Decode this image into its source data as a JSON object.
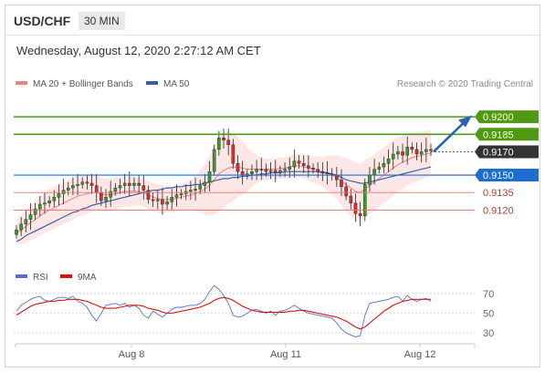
{
  "header": {
    "symbol": "USD/CHF",
    "interval": "30 MIN"
  },
  "timestamp": "Wednesday, August 12, 2020 2:27:12 AM CET",
  "colors": {
    "resistance": "#4f9a10",
    "support": "#e57373",
    "pivot": "#1e6ed2",
    "current": "#333333",
    "bollinger_fill": "#fde0e0",
    "ma20": "#f08080",
    "ma50": "#3a5ea8",
    "rsi": "#5470d0",
    "rsi_ma": "#dd1111",
    "candle_up": "#3a9a2a",
    "candle_down": "#d23030",
    "arrow": "#2a62b8"
  },
  "chart_data": [
    {
      "type": "candlestick",
      "legend": [
        {
          "name": "MA 20 + Bollinger Bands",
          "color": "#f08080"
        },
        {
          "name": "MA 50",
          "color": "#3a5ea8"
        }
      ],
      "credit": "Research © 2020 Trading Central",
      "x_ticks": [
        "Aug 8",
        "Aug 11",
        "Aug 12"
      ],
      "ylim": [
        0.9089,
        0.9222
      ],
      "levels": [
        {
          "label": "0.9200",
          "value": 0.92,
          "kind": "resistance",
          "style": "tag"
        },
        {
          "label": "0.9185",
          "value": 0.9185,
          "kind": "resistance",
          "style": "tag"
        },
        {
          "label": "0.9170",
          "value": 0.917,
          "kind": "current",
          "style": "tag"
        },
        {
          "label": "0.9150",
          "value": 0.915,
          "kind": "pivot",
          "style": "tag"
        },
        {
          "label": "0.9135",
          "value": 0.9135,
          "kind": "support",
          "style": "text"
        },
        {
          "label": "0.9120",
          "value": 0.912,
          "kind": "support",
          "style": "text"
        }
      ],
      "arrow": {
        "from": 0.917,
        "to": 0.9198
      },
      "close": [
        0.9103,
        0.9108,
        0.9112,
        0.9116,
        0.9121,
        0.9125,
        0.9126,
        0.9128,
        0.9131,
        0.9134,
        0.9137,
        0.9139,
        0.9141,
        0.9142,
        0.9144,
        0.9143,
        0.9141,
        0.9135,
        0.9128,
        0.9131,
        0.9136,
        0.9139,
        0.9141,
        0.9143,
        0.9141,
        0.9143,
        0.9141,
        0.9137,
        0.9129,
        0.9128,
        0.9129,
        0.9125,
        0.9127,
        0.9131,
        0.9133,
        0.9134,
        0.9136,
        0.9137,
        0.9138,
        0.9141,
        0.9144,
        0.9153,
        0.9172,
        0.9182,
        0.918,
        0.9176,
        0.916,
        0.9153,
        0.915,
        0.9151,
        0.9153,
        0.9155,
        0.9155,
        0.9153,
        0.9154,
        0.9152,
        0.9154,
        0.9155,
        0.9157,
        0.9162,
        0.916,
        0.9158,
        0.9156,
        0.9155,
        0.9153,
        0.9152,
        0.9151,
        0.915,
        0.9146,
        0.914,
        0.9132,
        0.9126,
        0.9117,
        0.9115,
        0.9142,
        0.915,
        0.9155,
        0.9157,
        0.916,
        0.9164,
        0.9168,
        0.917,
        0.9167,
        0.9174,
        0.9172,
        0.9168,
        0.917,
        0.9172,
        0.9171
      ],
      "ma20": [
        0.91,
        0.9103,
        0.9106,
        0.9109,
        0.9112,
        0.9115,
        0.9118,
        0.912,
        0.9122,
        0.9124,
        0.9126,
        0.9128,
        0.913,
        0.9132,
        0.9133,
        0.9134,
        0.9135,
        0.9135,
        0.9134,
        0.9133,
        0.9133,
        0.9134,
        0.9135,
        0.9136,
        0.9136,
        0.9136,
        0.9136,
        0.9135,
        0.9133,
        0.9131,
        0.913,
        0.9129,
        0.9129,
        0.9129,
        0.913,
        0.9131,
        0.9132,
        0.9133,
        0.9134,
        0.9136,
        0.9138,
        0.9141,
        0.9146,
        0.9151,
        0.9154,
        0.9156,
        0.9157,
        0.9157,
        0.9156,
        0.9155,
        0.9155,
        0.9155,
        0.9155,
        0.9155,
        0.9155,
        0.9155,
        0.9156,
        0.9156,
        0.9157,
        0.9158,
        0.9158,
        0.9157,
        0.9156,
        0.9155,
        0.9154,
        0.9153,
        0.9152,
        0.915,
        0.9148,
        0.9145,
        0.9142,
        0.9139,
        0.9136,
        0.9135,
        0.9138,
        0.9141,
        0.9144,
        0.9147,
        0.915,
        0.9153,
        0.9156,
        0.9159,
        0.9161,
        0.9163,
        0.9165,
        0.9166,
        0.9167,
        0.9168,
        0.9169
      ],
      "ma50": [
        0.9093,
        0.9095,
        0.9098,
        0.91,
        0.9102,
        0.9104,
        0.9106,
        0.9108,
        0.911,
        0.9112,
        0.9114,
        0.9116,
        0.9118,
        0.9119,
        0.9121,
        0.9122,
        0.9124,
        0.9125,
        0.9126,
        0.9127,
        0.9128,
        0.9129,
        0.913,
        0.9131,
        0.9132,
        0.9133,
        0.9134,
        0.9135,
        0.9136,
        0.9137,
        0.9137,
        0.9138,
        0.9139,
        0.9139,
        0.914,
        0.914,
        0.9141,
        0.9141,
        0.9142,
        0.9142,
        0.9143,
        0.9144,
        0.9145,
        0.9146,
        0.9147,
        0.9147,
        0.9148,
        0.9148,
        0.9149,
        0.9149,
        0.915,
        0.915,
        0.9151,
        0.9151,
        0.9152,
        0.9152,
        0.9152,
        0.9153,
        0.9153,
        0.9153,
        0.9153,
        0.9153,
        0.9153,
        0.9153,
        0.9153,
        0.9152,
        0.9152,
        0.9151,
        0.915,
        0.9148,
        0.9146,
        0.9145,
        0.9144,
        0.9143,
        0.9143,
        0.9144,
        0.9145,
        0.9146,
        0.9147,
        0.9148,
        0.9149,
        0.915,
        0.9151,
        0.9152,
        0.9153,
        0.9154,
        0.9155,
        0.9156,
        0.9157
      ],
      "band_width": [
        0.0012,
        0.0013,
        0.0014,
        0.0015,
        0.0016,
        0.0017,
        0.0017,
        0.0018,
        0.0018,
        0.0018,
        0.0018,
        0.0018,
        0.0018,
        0.0018,
        0.0018,
        0.0017,
        0.0016,
        0.0015,
        0.0014,
        0.0014,
        0.0014,
        0.0014,
        0.0013,
        0.0013,
        0.0013,
        0.0013,
        0.0012,
        0.0012,
        0.0012,
        0.0012,
        0.0012,
        0.0012,
        0.0011,
        0.0011,
        0.0011,
        0.0011,
        0.0012,
        0.0013,
        0.0015,
        0.0018,
        0.0022,
        0.0026,
        0.003,
        0.0032,
        0.0032,
        0.0031,
        0.0029,
        0.0026,
        0.0023,
        0.0019,
        0.0015,
        0.0012,
        0.001,
        0.0009,
        0.0009,
        0.0009,
        0.0009,
        0.0009,
        0.001,
        0.001,
        0.001,
        0.001,
        0.0011,
        0.0011,
        0.0012,
        0.0013,
        0.0015,
        0.0017,
        0.0019,
        0.0021,
        0.0023,
        0.0024,
        0.0025,
        0.0025,
        0.0025,
        0.0024,
        0.0024,
        0.0024,
        0.0024,
        0.0024,
        0.0024,
        0.0023,
        0.0023,
        0.0022,
        0.0022,
        0.0021,
        0.0021,
        0.002,
        0.002
      ]
    },
    {
      "type": "line",
      "legend": [
        {
          "name": "RSI",
          "color": "#5470d0"
        },
        {
          "name": "9MA",
          "color": "#dd1111"
        }
      ],
      "ylim": [
        20,
        80
      ],
      "y_ticks": [
        70,
        50,
        30
      ],
      "series": [
        {
          "name": "RSI",
          "values": [
            52,
            58,
            61,
            64,
            66,
            67,
            63,
            62,
            64,
            66,
            66,
            65,
            67,
            62,
            60,
            56,
            48,
            42,
            50,
            58,
            59,
            60,
            58,
            60,
            56,
            58,
            55,
            48,
            45,
            52,
            49,
            46,
            50,
            54,
            56,
            56,
            57,
            58,
            58,
            60,
            64,
            72,
            78,
            74,
            68,
            60,
            48,
            46,
            47,
            50,
            53,
            54,
            52,
            50,
            52,
            48,
            52,
            53,
            55,
            58,
            55,
            52,
            50,
            49,
            48,
            47,
            46,
            45,
            40,
            34,
            30,
            28,
            26,
            27,
            48,
            60,
            61,
            62,
            63,
            64,
            66,
            67,
            62,
            68,
            64,
            62,
            64,
            65,
            62
          ]
        },
        {
          "name": "9MA",
          "values": [
            48,
            51,
            54,
            57,
            59,
            60,
            61,
            62,
            62,
            63,
            63,
            64,
            64,
            64,
            63,
            62,
            60,
            58,
            56,
            55,
            55,
            55,
            56,
            57,
            58,
            58,
            58,
            57,
            55,
            54,
            53,
            51,
            50,
            50,
            51,
            52,
            53,
            54,
            55,
            56,
            58,
            60,
            63,
            65,
            66,
            65,
            63,
            60,
            57,
            55,
            53,
            52,
            51,
            51,
            51,
            51,
            51,
            51,
            52,
            52,
            53,
            53,
            52,
            51,
            50,
            49,
            48,
            47,
            46,
            44,
            42,
            39,
            36,
            34,
            36,
            40,
            44,
            48,
            52,
            55,
            58,
            60,
            62,
            63,
            64,
            64,
            64,
            64,
            64
          ]
        }
      ]
    }
  ]
}
